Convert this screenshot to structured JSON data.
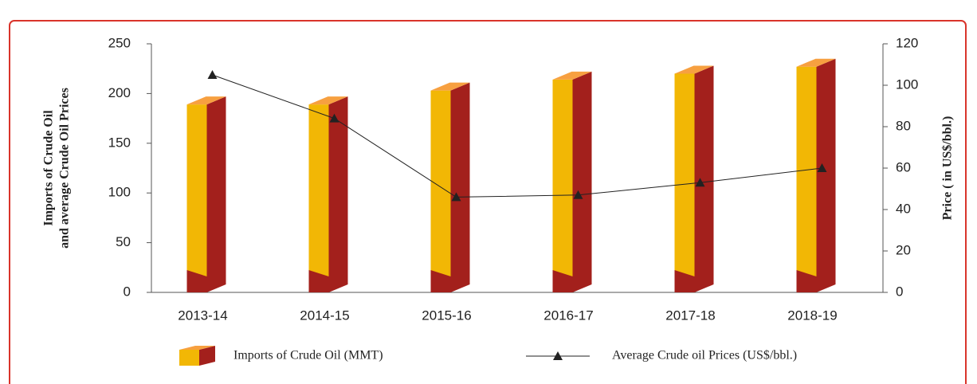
{
  "chart_data": {
    "type": "bar-line",
    "y_label": [
      "Imports of Crude Oil",
      "and average Crude Oil Prices"
    ],
    "y2_label": "Price ( in US$/bbl.)",
    "categories": [
      "2013-14",
      "2014-15",
      "2015-16",
      "2016-17",
      "2017-18",
      "2018-19"
    ],
    "series": [
      {
        "name": "Imports of Crude Oil (MMT)",
        "type": "bar",
        "color": "#f2b705",
        "side_color": "#a3201c",
        "top_color": "#f7a040",
        "values": [
          189,
          189,
          203,
          214,
          220,
          227
        ]
      },
      {
        "name": "Average Crude oil Prices (US$/bbl.)",
        "type": "line",
        "axis": "y2",
        "color": "#222222",
        "values": [
          105,
          84,
          46,
          47,
          53,
          60
        ]
      }
    ],
    "ylim": [
      0,
      250
    ],
    "yticks": [
      0,
      50,
      100,
      150,
      200,
      250
    ],
    "y2lim": [
      0,
      120
    ],
    "y2ticks": [
      0,
      20,
      40,
      60,
      80,
      100,
      120
    ]
  }
}
